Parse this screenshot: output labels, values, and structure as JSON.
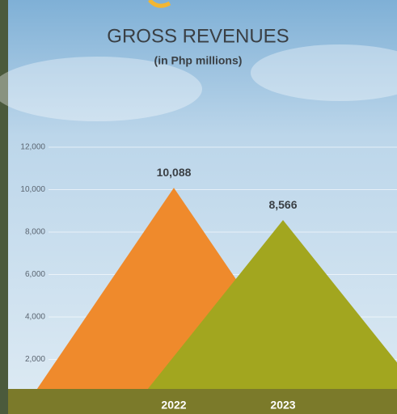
{
  "chart_data": {
    "type": "triangle",
    "title": "GROSS REVENUES",
    "subtitle": "(in Php millions)",
    "categories": [
      "2022",
      "2023"
    ],
    "values": [
      10088,
      8566
    ],
    "value_labels": [
      "10,088",
      "8,566"
    ],
    "colors": [
      "#ef8a2c",
      "#a2a61f"
    ],
    "ylim": [
      0,
      12000
    ],
    "yticks": [
      {
        "value": 2000,
        "label": "2,000"
      },
      {
        "value": 4000,
        "label": "4,000"
      },
      {
        "value": 6000,
        "label": "6,000"
      },
      {
        "value": 8000,
        "label": "8,000"
      },
      {
        "value": 10000,
        "label": "10,000"
      },
      {
        "value": 12000,
        "label": "12,000"
      }
    ],
    "grid": true
  }
}
